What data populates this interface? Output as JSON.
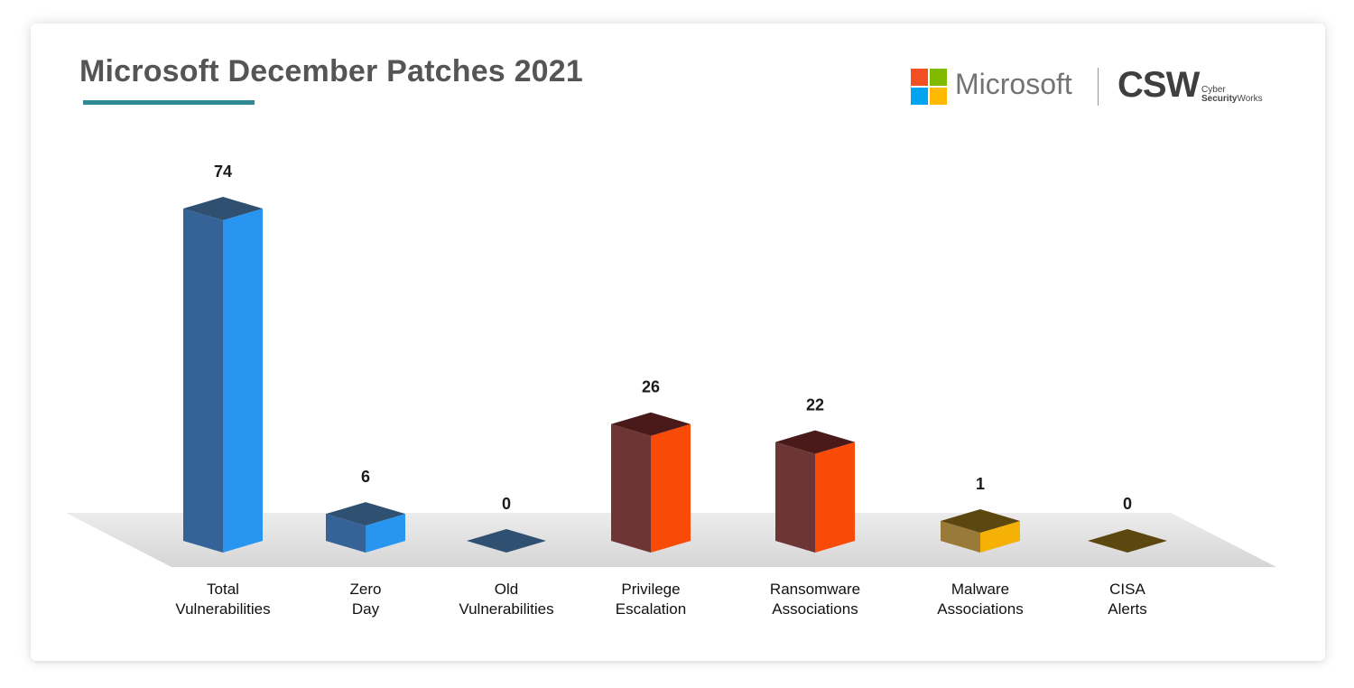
{
  "header": {
    "title": "Microsoft December Patches 2021",
    "microsoft_name": "Microsoft",
    "csw_mark": "CSW",
    "csw_line1": "Cyber",
    "csw_line2_bold": "Security",
    "csw_line2_rest": "Works"
  },
  "colors": {
    "title_underline": "#2f8a96",
    "ms_red": "#f25022",
    "ms_green": "#7fba00",
    "ms_blue": "#00a4ef",
    "ms_yellow": "#ffb900"
  },
  "chart_data": {
    "type": "bar",
    "title": "Microsoft December Patches 2021",
    "categories": [
      [
        "Total",
        "Vulnerabilities"
      ],
      [
        "Zero",
        "Day"
      ],
      [
        "Old",
        "Vulnerabilities"
      ],
      [
        "Privilege",
        "Escalation"
      ],
      [
        "Ransomware",
        "Associations"
      ],
      [
        "Malware",
        "Associations"
      ],
      [
        "CISA",
        "Alerts"
      ]
    ],
    "values": [
      74,
      6,
      0,
      26,
      22,
      1,
      0
    ],
    "value_labels": [
      "74",
      "6",
      "0",
      "26",
      "22",
      "1",
      "0"
    ],
    "bar_colors": [
      {
        "front": "#356297",
        "side": "#2896f0",
        "top": "#2f5070"
      },
      {
        "front": "#356297",
        "side": "#2896f0",
        "top": "#2f5070"
      },
      {
        "front": "#356297",
        "side": "#2896f0",
        "top": "#2f5070"
      },
      {
        "front": "#6e3535",
        "side": "#f84b08",
        "top": "#4a1a1a"
      },
      {
        "front": "#6e3535",
        "side": "#f84b08",
        "top": "#4a1a1a"
      },
      {
        "front": "#9a7a38",
        "side": "#f6b107",
        "top": "#5b470f"
      },
      {
        "front": "#9a7a38",
        "side": "#f6b107",
        "top": "#5b470f"
      }
    ],
    "floor_color": "#d6d6d6",
    "grid": false,
    "legend": "none"
  }
}
